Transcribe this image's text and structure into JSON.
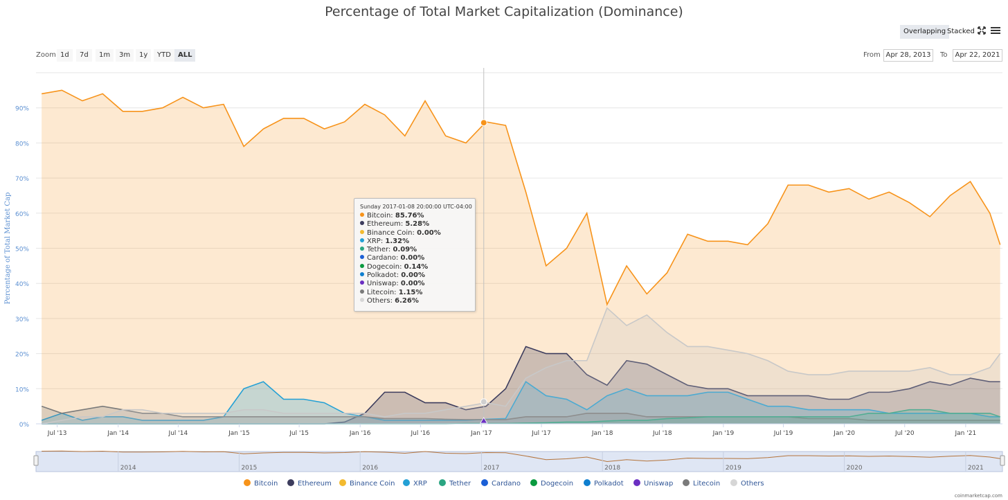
{
  "header": {
    "title": "Percentage of Total Market Capitalization (Dominance)",
    "modes": [
      {
        "label": "Overlapping",
        "active": true
      },
      {
        "label": "Stacked",
        "active": false
      }
    ]
  },
  "zoom": {
    "label": "Zoom",
    "buttons": [
      {
        "label": "1d",
        "active": false
      },
      {
        "label": "7d",
        "active": false
      },
      {
        "label": "1m",
        "active": false
      },
      {
        "label": "3m",
        "active": false
      },
      {
        "label": "1y",
        "active": false
      },
      {
        "label": "YTD",
        "active": false
      },
      {
        "label": "ALL",
        "active": true
      }
    ]
  },
  "range": {
    "from_label": "From",
    "from": "Apr 28, 2013",
    "to_label": "To",
    "to": "Apr 22, 2021"
  },
  "tooltip": {
    "header": "Sunday 2017-01-08 20:00:00 UTC-04:00",
    "rows": [
      {
        "name": "Bitcoin",
        "value": "85.76%",
        "color": "#f7931a"
      },
      {
        "name": "Ethereum",
        "value": "5.28%",
        "color": "#3c3c5d"
      },
      {
        "name": "Binance Coin",
        "value": "0.00%",
        "color": "#f3ba2f"
      },
      {
        "name": "XRP",
        "value": "1.32%",
        "color": "#23a0d5"
      },
      {
        "name": "Tether",
        "value": "0.09%",
        "color": "#2ba582"
      },
      {
        "name": "Cardano",
        "value": "0.00%",
        "color": "#1b5fd6"
      },
      {
        "name": "Dogecoin",
        "value": "0.14%",
        "color": "#0a9a3f"
      },
      {
        "name": "Polkadot",
        "value": "0.00%",
        "color": "#0f7fcf"
      },
      {
        "name": "Uniswap",
        "value": "0.00%",
        "color": "#6b2fc2"
      },
      {
        "name": "Litecoin",
        "value": "1.15%",
        "color": "#7a7a7a"
      },
      {
        "name": "Others",
        "value": "6.26%",
        "color": "#d6d6d6"
      }
    ]
  },
  "credit": "coinmarketcap.com",
  "chart_data": {
    "type": "area",
    "title": "Percentage of Total Market Capitalization (Dominance)",
    "ylabel": "Percentage of Total Market Cap",
    "ylim": [
      0,
      100
    ],
    "y_ticks": [
      "0%",
      "10%",
      "20%",
      "30%",
      "40%",
      "50%",
      "60%",
      "70%",
      "80%",
      "90%"
    ],
    "x_ticks": [
      "Jul '13",
      "Jan '14",
      "Jul '14",
      "Jan '15",
      "Jul '15",
      "Jan '16",
      "Jul '16",
      "Jan '17",
      "Jul '17",
      "Jan '18",
      "Jul '18",
      "Jan '19",
      "Jul '19",
      "Jan '20",
      "Jul '20",
      "Jan '21"
    ],
    "navigator_ticks": [
      "2014",
      "2015",
      "2016",
      "2017",
      "2018",
      "2019",
      "2020",
      "2021"
    ],
    "legend_position": "bottom",
    "x": [
      "2013-05",
      "2013-07",
      "2013-09",
      "2013-11",
      "2014-01",
      "2014-03",
      "2014-05",
      "2014-07",
      "2014-09",
      "2014-11",
      "2015-01",
      "2015-03",
      "2015-05",
      "2015-07",
      "2015-09",
      "2015-11",
      "2016-01",
      "2016-03",
      "2016-05",
      "2016-07",
      "2016-09",
      "2016-11",
      "2017-01",
      "2017-03",
      "2017-05",
      "2017-07",
      "2017-09",
      "2017-11",
      "2018-01",
      "2018-03",
      "2018-05",
      "2018-07",
      "2018-09",
      "2018-11",
      "2019-01",
      "2019-03",
      "2019-05",
      "2019-07",
      "2019-09",
      "2019-11",
      "2020-01",
      "2020-03",
      "2020-05",
      "2020-07",
      "2020-09",
      "2020-11",
      "2021-01",
      "2021-03",
      "2021-04"
    ],
    "series": [
      {
        "name": "Bitcoin",
        "color": "#f7931a",
        "values": [
          94,
          95,
          92,
          94,
          89,
          89,
          90,
          93,
          90,
          91,
          79,
          84,
          87,
          87,
          84,
          86,
          91,
          88,
          82,
          92,
          82,
          80,
          86,
          85,
          66,
          45,
          50,
          60,
          34,
          45,
          37,
          43,
          54,
          52,
          52,
          51,
          57,
          68,
          68,
          66,
          67,
          64,
          66,
          63,
          59,
          65,
          69,
          60,
          51
        ]
      },
      {
        "name": "Ethereum",
        "color": "#3c3c5d",
        "values": [
          0,
          0,
          0,
          0,
          0,
          0,
          0,
          0,
          0,
          0,
          0,
          0,
          0,
          0,
          0,
          0.5,
          3,
          9,
          9,
          6,
          6,
          4,
          5,
          10,
          22,
          20,
          20,
          14,
          11,
          18,
          17,
          14,
          11,
          10,
          10,
          8,
          8,
          8,
          8,
          7,
          7,
          9,
          9,
          10,
          12,
          11,
          13,
          12,
          12
        ]
      },
      {
        "name": "XRP",
        "color": "#23a0d5",
        "values": [
          1,
          3,
          1,
          2,
          2,
          1,
          1,
          1,
          1,
          2,
          10,
          12,
          7,
          7,
          6,
          3,
          2,
          1,
          1,
          1,
          1,
          1,
          1.3,
          1.5,
          12,
          8,
          7,
          4,
          8,
          10,
          8,
          8,
          8,
          9,
          9,
          7,
          5,
          5,
          4,
          4,
          4,
          4,
          3,
          3,
          3,
          3,
          3,
          2,
          2
        ]
      },
      {
        "name": "Litecoin",
        "color": "#7a7a7a",
        "values": [
          5,
          3,
          4,
          5,
          4,
          3,
          3,
          2,
          2,
          2,
          2,
          2,
          2,
          2,
          2,
          2,
          2,
          1.5,
          1.5,
          1.5,
          1.3,
          1.2,
          1.2,
          1.2,
          2,
          2,
          2,
          3,
          3,
          3,
          2,
          2,
          2,
          2,
          2,
          2,
          2,
          2,
          1.5,
          1.5,
          1.5,
          1,
          1,
          1,
          1,
          1,
          1,
          1,
          1
        ]
      },
      {
        "name": "Tether",
        "color": "#2ba582",
        "values": [
          0,
          0,
          0,
          0,
          0,
          0,
          0,
          0,
          0,
          0,
          0,
          0,
          0,
          0,
          0,
          0,
          0,
          0,
          0,
          0,
          0,
          0.1,
          0.1,
          0.1,
          0.2,
          0.3,
          0.5,
          0.5,
          0.8,
          1,
          1,
          1.5,
          1.7,
          2,
          2,
          2,
          2,
          2,
          2,
          2,
          2,
          3,
          3,
          4,
          4,
          3,
          3,
          3,
          2
        ]
      },
      {
        "name": "Others",
        "color": "#c8c8c8",
        "values": [
          0,
          1,
          2,
          2,
          4,
          4,
          3,
          3,
          3,
          3,
          4,
          4,
          3,
          3,
          3,
          3,
          3,
          2,
          3,
          3,
          4,
          5,
          6,
          5,
          13,
          16,
          18,
          18,
          33,
          28,
          31,
          26,
          22,
          22,
          21,
          20,
          18,
          15,
          14,
          14,
          15,
          15,
          15,
          15,
          16,
          14,
          14,
          16,
          20
        ]
      }
    ]
  },
  "legend": [
    {
      "label": "Bitcoin",
      "color": "#f7931a"
    },
    {
      "label": "Ethereum",
      "color": "#3c3c5d"
    },
    {
      "label": "Binance Coin",
      "color": "#f3ba2f"
    },
    {
      "label": "XRP",
      "color": "#23a0d5"
    },
    {
      "label": "Tether",
      "color": "#2ba582"
    },
    {
      "label": "Cardano",
      "color": "#1b5fd6"
    },
    {
      "label": "Dogecoin",
      "color": "#0a9a3f"
    },
    {
      "label": "Polkadot",
      "color": "#0f7fcf"
    },
    {
      "label": "Uniswap",
      "color": "#6b2fc2"
    },
    {
      "label": "Litecoin",
      "color": "#7a7a7a"
    },
    {
      "label": "Others",
      "color": "#d6d6d6"
    }
  ]
}
